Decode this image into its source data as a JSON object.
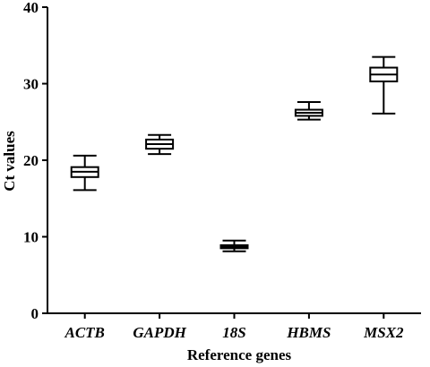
{
  "chart_data": {
    "type": "box",
    "xlabel": "Reference genes",
    "ylabel": "Ct values",
    "ylim": [
      0,
      40
    ],
    "yticks": [
      0,
      10,
      20,
      30,
      40
    ],
    "grid": false,
    "legend": "none",
    "categories": [
      "ACTB",
      "GAPDH",
      "18S",
      "HBMS",
      "MSX2"
    ],
    "boxes": [
      {
        "name": "ACTB",
        "min": 16.1,
        "q1": 17.8,
        "median": 18.5,
        "q3": 19.1,
        "max": 20.6
      },
      {
        "name": "GAPDH",
        "min": 20.8,
        "q1": 21.5,
        "median": 22.1,
        "q3": 22.7,
        "max": 23.3
      },
      {
        "name": "18S",
        "min": 8.1,
        "q1": 8.5,
        "median": 8.7,
        "q3": 8.9,
        "max": 9.5
      },
      {
        "name": "HBMS",
        "min": 25.3,
        "q1": 25.8,
        "median": 26.2,
        "q3": 26.6,
        "max": 27.6
      },
      {
        "name": "MSX2",
        "min": 26.1,
        "q1": 30.3,
        "median": 31.2,
        "q3": 32.1,
        "max": 33.5
      }
    ]
  }
}
